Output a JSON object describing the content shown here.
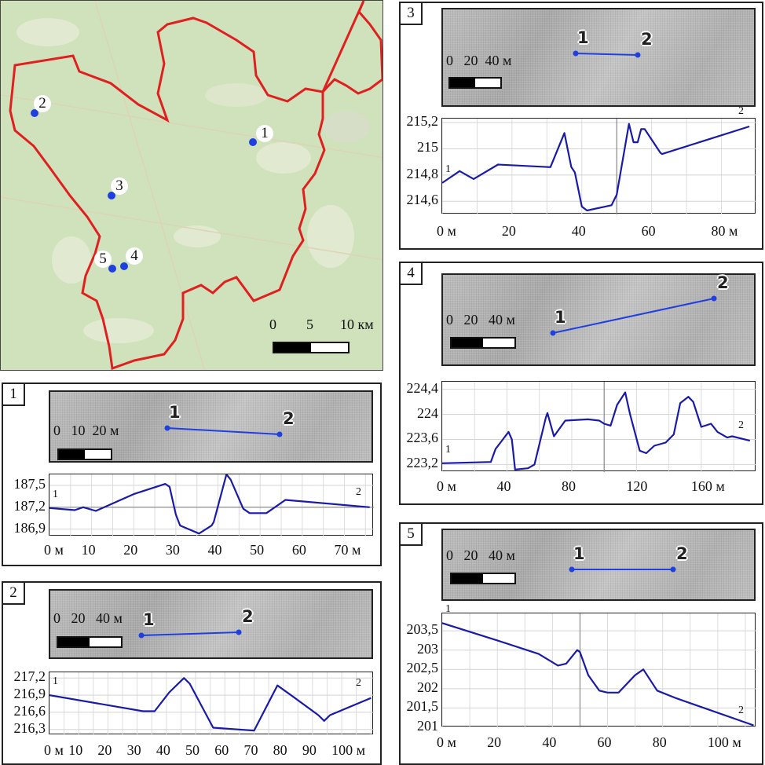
{
  "colors": {
    "boundary": "#e02020",
    "profile": "#1a1aa8",
    "point": "#1f3fe0",
    "map_bg": "#cfe2bb"
  },
  "map": {
    "points": [
      {
        "label": "1"
      },
      {
        "label": "2"
      },
      {
        "label": "3"
      },
      {
        "label": "4"
      },
      {
        "label": "5"
      }
    ],
    "scale": {
      "t0": "0",
      "t1": "5",
      "t2": "10 км"
    }
  },
  "panels": [
    {
      "label": "1",
      "scale_text": "0   10  20 м",
      "start": "1",
      "end": "2"
    },
    {
      "label": "2",
      "scale_text": "0   20   40 м",
      "start": "1",
      "end": "2"
    },
    {
      "label": "3",
      "scale_text": "0   20  40 м",
      "start": "1",
      "end": "2"
    },
    {
      "label": "4",
      "scale_text": "0   20   40 м",
      "start": "1",
      "end": "2"
    },
    {
      "label": "5",
      "scale_text": "0   20   40 м",
      "start": "1",
      "end": "2"
    }
  ],
  "chart_data": [
    {
      "type": "line",
      "title": "1",
      "xlim": [
        0,
        77
      ],
      "ylim": [
        186.8,
        187.65
      ],
      "xticks": [
        0,
        10,
        20,
        30,
        40,
        50,
        60,
        70
      ],
      "xticklabels": [
        "0 м",
        "10",
        "20",
        "30",
        "40",
        "50",
        "60",
        "70 м"
      ],
      "yticks": [
        187.5,
        187.2,
        186.9
      ],
      "yticklabels": [
        "187,5",
        "187,2",
        "186,9"
      ],
      "ref_y": 187.2,
      "x": [
        0,
        6,
        8,
        11,
        20,
        27.5,
        28.5,
        30,
        31,
        35.5,
        38.5,
        39,
        42,
        43,
        46,
        47.5,
        51.5,
        56,
        76
      ],
      "y": [
        187.19,
        187.16,
        187.2,
        187.15,
        187.38,
        187.52,
        187.48,
        187.1,
        186.95,
        186.84,
        186.95,
        187.0,
        187.65,
        187.58,
        187.18,
        187.12,
        187.12,
        187.3,
        187.2
      ],
      "start_label": "1",
      "end_label": "2"
    },
    {
      "type": "line",
      "title": "2",
      "xlim": [
        0,
        111
      ],
      "ylim": [
        216.2,
        217.3
      ],
      "xticks": [
        0,
        10,
        20,
        30,
        40,
        50,
        60,
        70,
        80,
        90,
        100
      ],
      "xticklabels": [
        "0 м",
        "10",
        "20",
        "30",
        "40",
        "50",
        "60",
        "70",
        "80",
        "90",
        "100 м"
      ],
      "yticks": [
        217.2,
        216.9,
        216.6,
        216.3
      ],
      "yticklabels": [
        "217,2",
        "216,9",
        "216,6",
        "216,3"
      ],
      "x": [
        0,
        32,
        36,
        41,
        46,
        48,
        56,
        70,
        78,
        84,
        92,
        94,
        96,
        110
      ],
      "y": [
        216.9,
        216.62,
        216.62,
        216.95,
        217.2,
        217.1,
        216.33,
        216.28,
        217.07,
        216.85,
        216.55,
        216.45,
        216.55,
        216.85
      ],
      "start_label": "1",
      "end_label": "2"
    },
    {
      "type": "line",
      "title": "3",
      "xlim": [
        0,
        90
      ],
      "ylim": [
        214.5,
        215.23
      ],
      "xticks": [
        0,
        20,
        40,
        60,
        80
      ],
      "xticklabels": [
        "0 м",
        "20",
        "40",
        "60",
        "80 м"
      ],
      "yticks": [
        215.2,
        215,
        214.8,
        214.6
      ],
      "yticklabels": [
        "215,2",
        "215",
        "214,8",
        "214,6"
      ],
      "ref_x": 50,
      "x": [
        0,
        5,
        9,
        16,
        31,
        35,
        37,
        38,
        40,
        41.5,
        48.5,
        50,
        53.5,
        54.8,
        56,
        57,
        58,
        62.5,
        63,
        88
      ],
      "y": [
        214.74,
        214.83,
        214.77,
        214.88,
        214.86,
        215.12,
        214.86,
        214.82,
        214.56,
        214.53,
        214.57,
        214.65,
        215.19,
        215.05,
        215.05,
        215.15,
        215.15,
        214.97,
        214.96,
        215.17
      ],
      "start_label": "1",
      "end_label": "2"
    },
    {
      "type": "line",
      "title": "4",
      "xlim": [
        0,
        194
      ],
      "ylim": [
        223.08,
        224.52
      ],
      "xticks": [
        0,
        40,
        80,
        120,
        160
      ],
      "xticklabels": [
        "0 м",
        "40",
        "80",
        "120",
        "160 м"
      ],
      "yticks": [
        224.4,
        224,
        223.6,
        223.2
      ],
      "yticklabels": [
        "224,4",
        "224",
        "223,6",
        "223,2"
      ],
      "ref_x": 100,
      "x": [
        0,
        30,
        33,
        36,
        41,
        43,
        45,
        53,
        57,
        64,
        65,
        69,
        76,
        90,
        97,
        100,
        104,
        108,
        113,
        116,
        122,
        126,
        131,
        138,
        143,
        147,
        152,
        155,
        160,
        166,
        170,
        176,
        179,
        190
      ],
      "y": [
        223.22,
        223.24,
        223.45,
        223.55,
        223.72,
        223.6,
        223.12,
        223.14,
        223.2,
        223.95,
        224.02,
        223.65,
        223.9,
        223.92,
        223.9,
        223.85,
        223.82,
        224.15,
        224.35,
        224.0,
        223.42,
        223.38,
        223.5,
        223.55,
        223.68,
        224.18,
        224.28,
        224.2,
        223.8,
        223.85,
        223.72,
        223.63,
        223.65,
        223.58
      ],
      "start_label": "1",
      "end_label": "2"
    },
    {
      "type": "line",
      "title": "5",
      "xlim": [
        0,
        114
      ],
      "ylim": [
        201,
        203.95
      ],
      "xticks": [
        0,
        20,
        40,
        60,
        80,
        100
      ],
      "xticklabels": [
        "0 м",
        "20",
        "40",
        "60",
        "80",
        "100 м"
      ],
      "yticks": [
        203.5,
        203,
        202.5,
        202,
        201.5,
        201
      ],
      "yticklabels": [
        "203,5",
        "203",
        "202,5",
        "202",
        "201,5",
        "201"
      ],
      "ref_x": 50,
      "x": [
        0,
        20,
        35,
        42,
        45,
        49,
        50,
        53,
        57,
        60,
        64,
        70,
        73,
        78,
        85,
        113
      ],
      "y": [
        203.7,
        203.25,
        202.9,
        202.6,
        202.65,
        203.0,
        202.95,
        202.35,
        201.95,
        201.9,
        201.9,
        202.35,
        202.5,
        201.95,
        201.75,
        201.05
      ],
      "start_label": "1",
      "end_label": "2"
    }
  ]
}
